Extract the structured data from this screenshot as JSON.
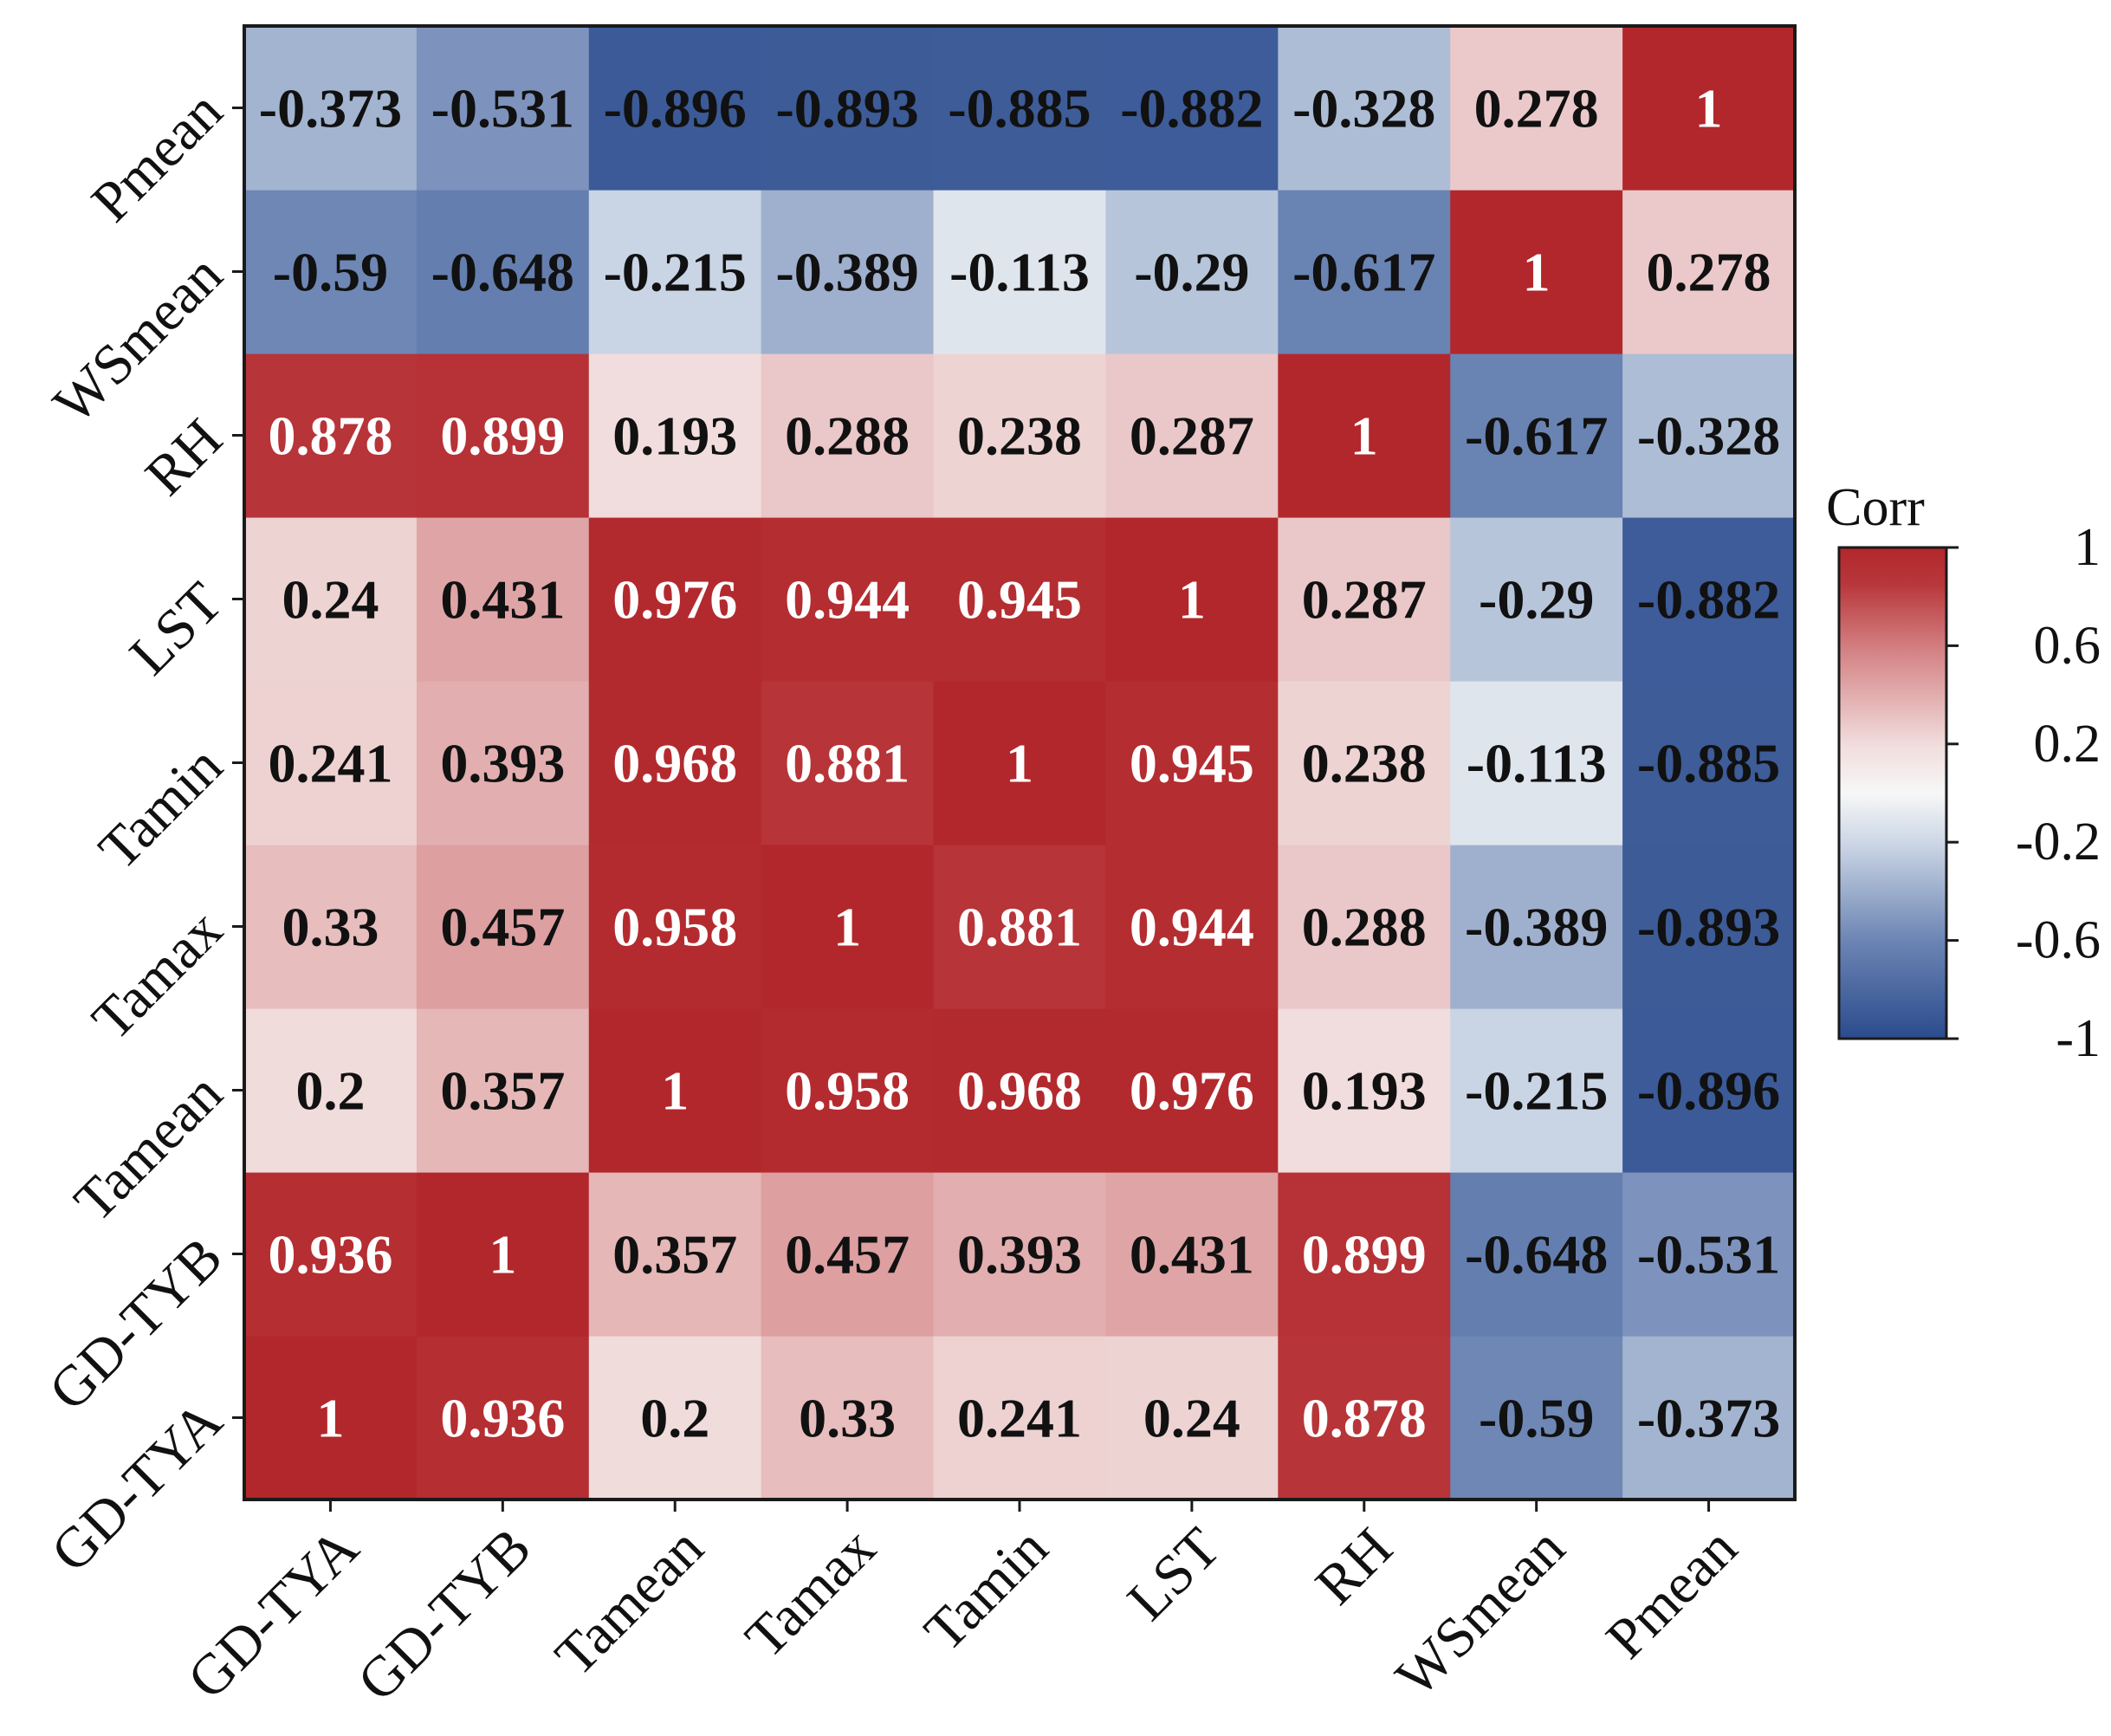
{
  "chart_data": {
    "type": "heatmap",
    "variables": [
      "GD-TYA",
      "GD-TYB",
      "Tamean",
      "Tamax",
      "Tamin",
      "LST",
      "RH",
      "WSmean",
      "Pmean"
    ],
    "x_tick_labels": [
      "GD-TYA",
      "GD-TYB",
      "Tamean",
      "Tamax",
      "Tamin",
      "LST",
      "RH",
      "WSmean",
      "Pmean"
    ],
    "y_tick_labels_bottom_to_top": [
      "GD-TYA",
      "GD-TYB",
      "Tamean",
      "Tamax",
      "Tamin",
      "LST",
      "RH",
      "WSmean",
      "Pmean"
    ],
    "matrix": [
      [
        1,
        0.936,
        0.2,
        0.33,
        0.241,
        0.24,
        0.878,
        -0.59,
        -0.373
      ],
      [
        0.936,
        1,
        0.357,
        0.457,
        0.393,
        0.431,
        0.899,
        -0.648,
        -0.531
      ],
      [
        0.2,
        0.357,
        1,
        0.958,
        0.968,
        0.976,
        0.193,
        -0.215,
        -0.896
      ],
      [
        0.33,
        0.457,
        0.958,
        1,
        0.881,
        0.944,
        0.288,
        -0.389,
        -0.893
      ],
      [
        0.241,
        0.393,
        0.968,
        0.881,
        1,
        0.945,
        0.238,
        -0.113,
        -0.885
      ],
      [
        0.24,
        0.431,
        0.976,
        0.944,
        0.945,
        1,
        0.287,
        -0.29,
        -0.882
      ],
      [
        0.878,
        0.899,
        0.193,
        0.288,
        0.238,
        0.287,
        1,
        -0.617,
        -0.328
      ],
      [
        -0.59,
        -0.648,
        -0.215,
        -0.389,
        -0.113,
        -0.29,
        -0.617,
        1,
        0.278
      ],
      [
        -0.373,
        -0.531,
        -0.896,
        -0.893,
        -0.885,
        -0.882,
        -0.328,
        0.278,
        1
      ]
    ],
    "cell_labels": [
      [
        "1",
        "0.936",
        "0.2",
        "0.33",
        "0.241",
        "0.24",
        "0.878",
        "-0.59",
        "-0.373"
      ],
      [
        "0.936",
        "1",
        "0.357",
        "0.457",
        "0.393",
        "0.431",
        "0.899",
        "-0.648",
        "-0.531"
      ],
      [
        "0.2",
        "0.357",
        "1",
        "0.958",
        "0.968",
        "0.976",
        "0.193",
        "-0.215",
        "-0.896"
      ],
      [
        "0.33",
        "0.457",
        "0.958",
        "1",
        "0.881",
        "0.944",
        "0.288",
        "-0.389",
        "-0.893"
      ],
      [
        "0.241",
        "0.393",
        "0.968",
        "0.881",
        "1",
        "0.945",
        "0.238",
        "-0.113",
        "-0.885"
      ],
      [
        "0.24",
        "0.431",
        "0.976",
        "0.944",
        "0.945",
        "1",
        "0.287",
        "-0.29",
        "-0.882"
      ],
      [
        "0.878",
        "0.899",
        "0.193",
        "0.288",
        "0.238",
        "0.287",
        "1",
        "-0.617",
        "-0.328"
      ],
      [
        "-0.59",
        "-0.648",
        "-0.215",
        "-0.389",
        "-0.113",
        "-0.29",
        "-0.617",
        "1",
        "0.278"
      ],
      [
        "-0.373",
        "-0.531",
        "-0.896",
        "-0.893",
        "-0.885",
        "-0.882",
        "-0.328",
        "0.278",
        "1"
      ]
    ],
    "color_range": [
      -1,
      1
    ],
    "colorscale": [
      {
        "value": -1,
        "color": "#2a4b8d"
      },
      {
        "value": -0.6,
        "color": "#6c85b4"
      },
      {
        "value": -0.2,
        "color": "#cdd7e6"
      },
      {
        "value": 0,
        "color": "#f7f7f7"
      },
      {
        "value": 0.2,
        "color": "#f1dcdc"
      },
      {
        "value": 0.6,
        "color": "#d27d7f"
      },
      {
        "value": 0.85,
        "color": "#b8373b"
      },
      {
        "value": 1,
        "color": "#b2272b"
      }
    ],
    "colorbar": {
      "title": "Corr",
      "ticks": [
        1,
        0.6,
        0.2,
        -0.2,
        -0.6,
        -1
      ],
      "tick_labels": [
        "1",
        "0.6",
        "0.2",
        "-0.2",
        "-0.6",
        "-1"
      ]
    },
    "label_color_rule": {
      "threshold": 0.85,
      "light": "#ffffff",
      "dark": "#111111"
    }
  }
}
